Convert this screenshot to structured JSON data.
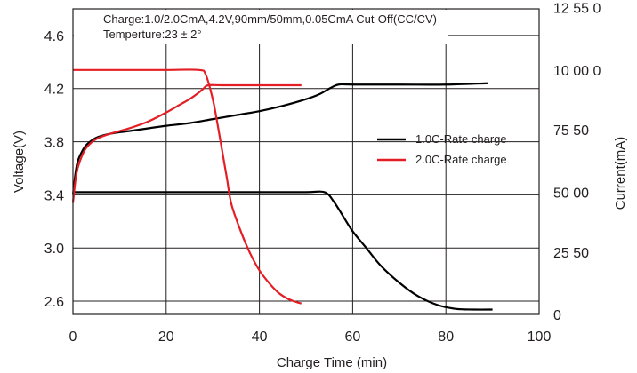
{
  "chart_data": {
    "type": "line",
    "annotation": {
      "line1": "Charge:1.0/2.0CmA,4.2V,90mm/50mm,0.05CmA Cut-Off(CC/CV)",
      "line2": "Temperture:23 ± 2°"
    },
    "xlabel": "Charge Time (min)",
    "ylabel": "Voltage(V)",
    "y2label": "Current(mA)",
    "xlim": [
      0,
      100
    ],
    "ylim": [
      2.5,
      4.8
    ],
    "y2lim": [
      0,
      12500
    ],
    "x_ticks": [
      "0",
      "20",
      "40",
      "60",
      "80",
      "100"
    ],
    "x_tick_values": [
      0,
      20,
      40,
      60,
      80,
      100
    ],
    "y_ticks": [
      "2.6",
      "3.0",
      "3.4",
      "3.8",
      "4.2",
      "4.6"
    ],
    "y_tick_values": [
      2.6,
      3.0,
      3.4,
      3.8,
      4.2,
      4.6
    ],
    "y2_ticks": [
      "0",
      "25 50",
      "50 00",
      "75 50",
      "10 00 0",
      "12 55 0"
    ],
    "grid": true,
    "legend_position": "right-center",
    "colors": {
      "series_1": "#000000",
      "series_2": "#e31e24",
      "frame": "#231f20"
    },
    "series": [
      {
        "name": "1.0C-Rate charge",
        "color": "#000000",
        "voltage": [
          [
            0,
            3.4
          ],
          [
            0.5,
            3.55
          ],
          [
            1,
            3.65
          ],
          [
            2,
            3.73
          ],
          [
            3,
            3.78
          ],
          [
            5,
            3.83
          ],
          [
            8,
            3.86
          ],
          [
            12,
            3.88
          ],
          [
            16,
            3.9
          ],
          [
            20,
            3.92
          ],
          [
            25,
            3.94
          ],
          [
            30,
            3.97
          ],
          [
            35,
            4.0
          ],
          [
            40,
            4.03
          ],
          [
            45,
            4.07
          ],
          [
            50,
            4.12
          ],
          [
            53,
            4.16
          ],
          [
            55,
            4.2
          ],
          [
            57,
            4.23
          ],
          [
            60,
            4.23
          ],
          [
            70,
            4.23
          ],
          [
            80,
            4.23
          ],
          [
            89,
            4.24
          ]
        ],
        "current": [
          [
            0,
            5000
          ],
          [
            10,
            5000
          ],
          [
            20,
            5000
          ],
          [
            30,
            5000
          ],
          [
            40,
            5000
          ],
          [
            50,
            5000
          ],
          [
            54,
            5000
          ],
          [
            56,
            4600
          ],
          [
            58,
            4000
          ],
          [
            60,
            3400
          ],
          [
            63,
            2700
          ],
          [
            66,
            2000
          ],
          [
            70,
            1300
          ],
          [
            74,
            750
          ],
          [
            78,
            400
          ],
          [
            82,
            230
          ],
          [
            86,
            200
          ],
          [
            90,
            200
          ]
        ]
      },
      {
        "name": "2.0C-Rate charge",
        "color": "#e31e24",
        "voltage": [
          [
            0,
            3.34
          ],
          [
            0.5,
            3.5
          ],
          [
            1,
            3.6
          ],
          [
            2,
            3.7
          ],
          [
            3,
            3.76
          ],
          [
            5,
            3.82
          ],
          [
            8,
            3.86
          ],
          [
            12,
            3.9
          ],
          [
            16,
            3.95
          ],
          [
            20,
            4.02
          ],
          [
            23,
            4.08
          ],
          [
            25,
            4.12
          ],
          [
            27,
            4.17
          ],
          [
            28,
            4.2
          ],
          [
            29,
            4.225
          ],
          [
            32,
            4.225
          ],
          [
            40,
            4.225
          ],
          [
            49,
            4.225
          ]
        ],
        "current": [
          [
            0,
            10000
          ],
          [
            10,
            10000
          ],
          [
            20,
            10000
          ],
          [
            27,
            10000
          ],
          [
            28.5,
            9800
          ],
          [
            30,
            8800
          ],
          [
            31,
            7800
          ],
          [
            32,
            6700
          ],
          [
            33,
            5600
          ],
          [
            34,
            4500
          ],
          [
            36,
            3400
          ],
          [
            38,
            2500
          ],
          [
            40,
            1800
          ],
          [
            42,
            1300
          ],
          [
            44,
            900
          ],
          [
            46,
            650
          ],
          [
            48,
            500
          ],
          [
            49,
            450
          ]
        ]
      }
    ]
  }
}
